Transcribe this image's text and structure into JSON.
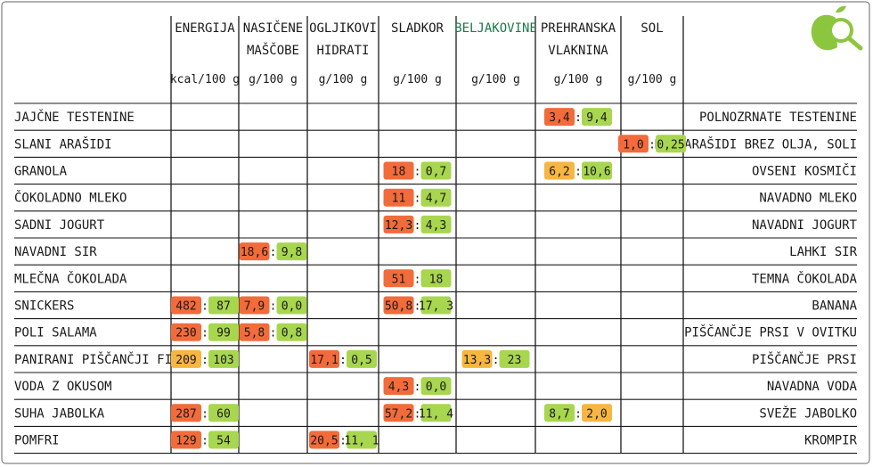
{
  "colors": {
    "bad": "#f26b3a",
    "good": "#a8d64f",
    "neutral": "#f7b541",
    "grid": "#1a1a1a",
    "header_green": "#1a7a4a",
    "logo_green": "#8cc63f"
  },
  "logo": {
    "icon": "apple-magnifier-icon"
  },
  "chart_data": {
    "type": "table",
    "columns": [
      {
        "name": [
          "ENERGIJA"
        ],
        "unit": "kcal/100 g"
      },
      {
        "name": [
          "NASIČENE",
          "MAŠČOBE"
        ],
        "unit": "g/100 g"
      },
      {
        "name": [
          "OGLJIKOVI",
          "HIDRATI"
        ],
        "unit": "g/100 g"
      },
      {
        "name": [
          "SLADKOR"
        ],
        "unit": "g/100 g"
      },
      {
        "name": [
          "BELJAKOVINE"
        ],
        "unit": "g/100 g",
        "highlight": true
      },
      {
        "name": [
          "PREHRANSKA",
          "VLAKNINA"
        ],
        "unit": "g/100 g"
      },
      {
        "name": [
          "SOL"
        ],
        "unit": "g/100 g"
      }
    ],
    "rows": [
      {
        "left": "JAJČNE TESTENINE",
        "right": "POLNOZRNATE TESTENINE",
        "cells": [
          {
            "col": 5,
            "a": "3,4",
            "b": "9,4",
            "ca": "bad",
            "cb": "good"
          }
        ]
      },
      {
        "left": "SLANI ARAŠIDI",
        "right": "PR. ARAŠIDI BREZ OLJA, SOLI",
        "cells": [
          {
            "col": 6,
            "a": "1,0",
            "b": "0,25",
            "ca": "bad",
            "cb": "good"
          }
        ]
      },
      {
        "left": "GRANOLA",
        "right": "OVSENI KOSMIČI",
        "cells": [
          {
            "col": 3,
            "a": "18",
            "b": "0,7",
            "ca": "bad",
            "cb": "good"
          },
          {
            "col": 5,
            "a": "6,2",
            "b": "10,6",
            "ca": "neutral",
            "cb": "good"
          }
        ]
      },
      {
        "left": "ČOKOLADNO MLEKO",
        "right": "NAVADNO MLEKO",
        "cells": [
          {
            "col": 3,
            "a": "11",
            "b": "4,7",
            "ca": "bad",
            "cb": "good"
          }
        ]
      },
      {
        "left": "SADNI JOGURT",
        "right": "NAVADNI JOGURT",
        "cells": [
          {
            "col": 3,
            "a": "12,3",
            "b": "4,3",
            "ca": "bad",
            "cb": "good"
          }
        ]
      },
      {
        "left": "NAVADNI SIR",
        "right": "LAHKI SIR",
        "cells": [
          {
            "col": 1,
            "a": "18,6",
            "b": "9,8",
            "ca": "bad",
            "cb": "good"
          }
        ]
      },
      {
        "left": "MLEČNA ČOKOLADA",
        "right": "TEMNA ČOKOLADA",
        "cells": [
          {
            "col": 3,
            "a": "51",
            "b": "18",
            "ca": "bad",
            "cb": "good"
          }
        ]
      },
      {
        "left": "SNICKERS",
        "right": "BANANA",
        "cells": [
          {
            "col": 0,
            "a": "482",
            "b": "87",
            "ca": "bad",
            "cb": "good"
          },
          {
            "col": 1,
            "a": "7,9",
            "b": "0,0",
            "ca": "bad",
            "cb": "good"
          },
          {
            "col": 3,
            "a": "50,8",
            "b": "17, 3",
            "ca": "bad",
            "cb": "good"
          }
        ]
      },
      {
        "left": "POLI SALAMA",
        "right": "PIŠČANČJE PRSI V OVITKU",
        "cells": [
          {
            "col": 0,
            "a": "230",
            "b": "99",
            "ca": "bad",
            "cb": "good"
          },
          {
            "col": 1,
            "a": "5,8",
            "b": "0,8",
            "ca": "bad",
            "cb": "good"
          }
        ]
      },
      {
        "left": "PANIRANI PIŠČANČJI FILE",
        "right": "PIŠČANČJE PRSI",
        "cells": [
          {
            "col": 0,
            "a": "209",
            "b": "103",
            "ca": "neutral",
            "cb": "good"
          },
          {
            "col": 2,
            "a": "17,1",
            "b": "0,5",
            "ca": "bad",
            "cb": "good"
          },
          {
            "col": 4,
            "a": "13,3",
            "b": "23",
            "ca": "neutral",
            "cb": "good"
          }
        ]
      },
      {
        "left": "VODA Z OKUSOM",
        "right": "NAVADNA VODA",
        "cells": [
          {
            "col": 3,
            "a": "4,3",
            "b": "0,0",
            "ca": "bad",
            "cb": "good"
          }
        ]
      },
      {
        "left": "SUHA JABOLKA",
        "right": "SVEŽE JABOLKO",
        "cells": [
          {
            "col": 0,
            "a": "287",
            "b": "60",
            "ca": "bad",
            "cb": "good"
          },
          {
            "col": 3,
            "a": "57,2",
            "b": "11, 4",
            "ca": "bad",
            "cb": "good"
          },
          {
            "col": 5,
            "a": "8,7",
            "b": "2,0",
            "ca": "good",
            "cb": "neutral"
          }
        ]
      },
      {
        "left": "POMFRI",
        "right": "KROMPIR",
        "cells": [
          {
            "col": 0,
            "a": "129",
            "b": "54",
            "ca": "bad",
            "cb": "good"
          },
          {
            "col": 2,
            "a": "20,5",
            "b": "11, 1",
            "ca": "bad",
            "cb": "good"
          }
        ]
      }
    ]
  }
}
